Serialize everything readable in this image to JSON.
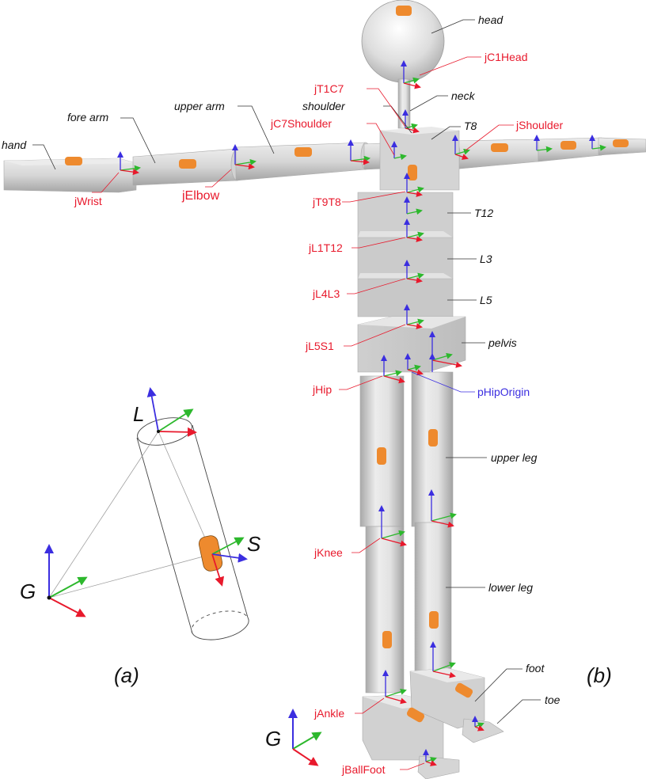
{
  "colors": {
    "x_axis": "#e8192c",
    "y_axis": "#2db82d",
    "z_axis": "#3b2ee0",
    "sensor": "#ee8a2e",
    "joint_label": "#e8192c",
    "origin_label": "#3b2ee0",
    "segment_label": "#111111",
    "body_face": "#d9d9d9",
    "body_edge": "#b9b9b9"
  },
  "panels": {
    "a_label": "(a)",
    "b_label": "(b)"
  },
  "panel_a": {
    "global_label": "G",
    "segment_label": "L",
    "sensor_label": "S"
  },
  "panel_b": {
    "global_label": "G",
    "segment_labels": {
      "head": "head",
      "neck": "neck",
      "shoulder": "shoulder",
      "upper_arm": "upper arm",
      "fore_arm": "fore arm",
      "hand": "hand",
      "t8": "T8",
      "t12": "T12",
      "l3": "L3",
      "l5": "L5",
      "pelvis": "pelvis",
      "upper_leg": "upper leg",
      "lower_leg": "lower leg",
      "foot": "foot",
      "toe": "toe"
    },
    "joint_labels": {
      "jC1Head": "jC1Head",
      "jT1C7": "jT1C7",
      "jC7Shoulder": "jC7Shoulder",
      "jShoulder": "jShoulder",
      "jWrist": "jWrist",
      "jElbow": "jElbow",
      "jT9T8": "jT9T8",
      "jL1T12": "jL1T12",
      "jL4L3": "jL4L3",
      "jL5S1": "jL5S1",
      "jHip": "jHip",
      "jKnee": "jKnee",
      "jAnkle": "jAnkle",
      "jBallFoot": "jBallFoot"
    },
    "origin_labels": {
      "pHipOrigin": "pHipOrigin"
    }
  }
}
